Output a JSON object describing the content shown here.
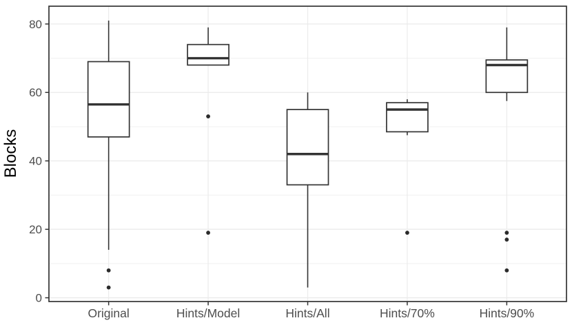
{
  "chart_data": {
    "type": "boxplot",
    "title": "",
    "xlabel": "",
    "ylabel": "Blocks",
    "categories": [
      "Original",
      "Hints/Model",
      "Hints/All",
      "Hints/70%",
      "Hints/90%"
    ],
    "series": [
      {
        "name": "Original",
        "whisker_low": 14,
        "q1": 47,
        "median": 56.5,
        "q3": 69,
        "whisker_high": 81,
        "outliers": [
          8,
          3
        ]
      },
      {
        "name": "Hints/Model",
        "whisker_low": 68,
        "q1": 68,
        "median": 70,
        "q3": 74,
        "whisker_high": 79,
        "outliers": [
          53,
          19
        ]
      },
      {
        "name": "Hints/All",
        "whisker_low": 3,
        "q1": 33,
        "median": 42,
        "q3": 55,
        "whisker_high": 60,
        "outliers": []
      },
      {
        "name": "Hints/70%",
        "whisker_low": 47.5,
        "q1": 48.5,
        "median": 55,
        "q3": 57,
        "whisker_high": 58,
        "outliers": [
          19
        ]
      },
      {
        "name": "Hints/90%",
        "whisker_low": 57.5,
        "q1": 60,
        "median": 68,
        "q3": 69.5,
        "whisker_high": 79,
        "outliers": [
          19,
          17,
          8
        ]
      }
    ],
    "y_ticks": [
      0,
      20,
      40,
      60,
      80
    ],
    "y_minor_gridlines": [
      10,
      30,
      50,
      70
    ],
    "ylim": [
      -1.1,
      85.2
    ],
    "grid": "on",
    "legend": "none",
    "colors": {
      "background": "#FFFFFF",
      "panel_background": "#FFFFFF",
      "panel_border": "#333333",
      "gridline_major": "#EBEBEB",
      "gridline_minor": "#F0F0F0",
      "box_stroke": "#333333",
      "box_fill": "#FFFFFF",
      "median": "#333333",
      "whisker": "#333333",
      "outlier": "#2B2B2B",
      "tick_mark": "#333333",
      "axis_text": "#4D4D4D",
      "axis_title": "#000000"
    }
  }
}
